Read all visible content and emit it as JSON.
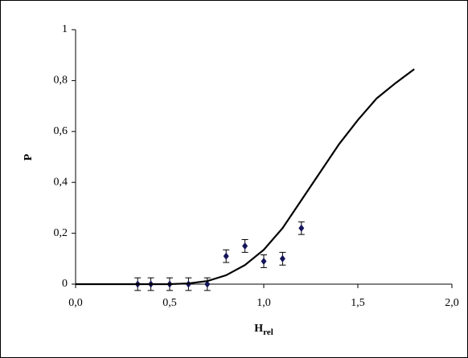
{
  "chart_data": {
    "type": "scatter",
    "xlabel": {
      "main": "H",
      "sub": "rel"
    },
    "ylabel": "P",
    "xlim": [
      0,
      2
    ],
    "ylim": [
      0,
      1
    ],
    "xticks": [
      {
        "value": 0,
        "label": "0,0"
      },
      {
        "value": 0.5,
        "label": "0,5"
      },
      {
        "value": 1,
        "label": "1,0"
      },
      {
        "value": 1.5,
        "label": "1,5"
      },
      {
        "value": 2,
        "label": "2,0"
      }
    ],
    "yticks": [
      0,
      {
        "value": 0.2,
        "label": "0,2"
      },
      {
        "value": 0.4,
        "label": "0,4"
      },
      {
        "value": 0.6,
        "label": "0,6"
      },
      {
        "value": 0.8,
        "label": "0,8"
      },
      1
    ],
    "series": [
      {
        "style": "markers",
        "color": "#14145a",
        "x": [
          0.33,
          0.4,
          0.5,
          0.6,
          0.7,
          0.8,
          0.9,
          1.0,
          1.1,
          1.2
        ],
        "values": [
          0,
          0,
          0,
          0,
          0,
          0.11,
          0.15,
          0.09,
          0.1,
          0.22
        ],
        "errors": [
          0.025,
          0.025,
          0.025,
          0.025,
          0.025,
          0.025,
          0.025,
          0.025,
          0.025,
          0.025
        ]
      },
      {
        "style": "line",
        "color": "#000000",
        "x": [
          0,
          0.1,
          0.2,
          0.3,
          0.4,
          0.5,
          0.6,
          0.7,
          0.8,
          0.9,
          1.0,
          1.1,
          1.2,
          1.3,
          1.4,
          1.5,
          1.6,
          1.7,
          1.8
        ],
        "values": [
          0,
          0,
          0,
          0,
          0,
          0,
          0.003,
          0.012,
          0.035,
          0.075,
          0.135,
          0.22,
          0.33,
          0.44,
          0.55,
          0.645,
          0.73,
          0.79,
          0.845
        ]
      }
    ]
  }
}
